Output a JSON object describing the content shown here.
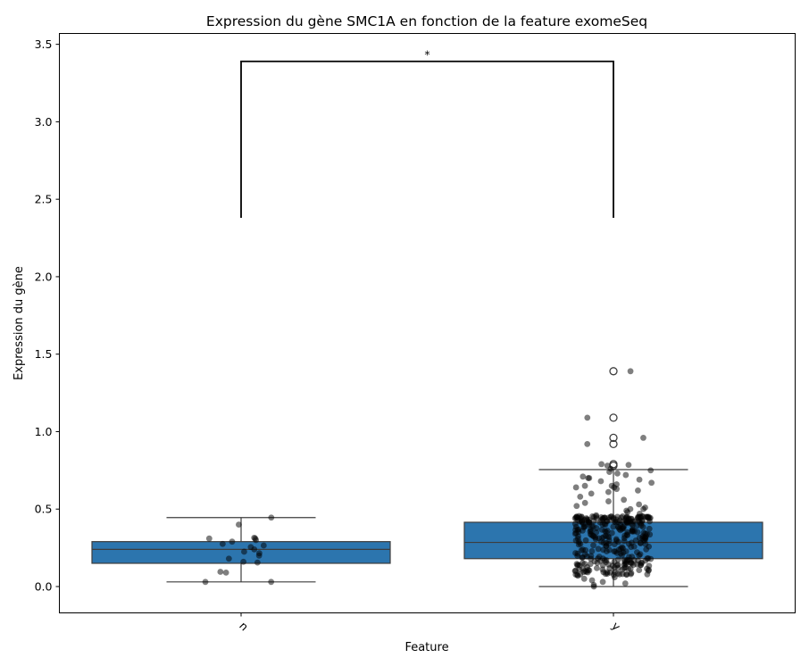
{
  "chart_data": {
    "type": "box",
    "title": "Expression du gène SMC1A en fonction de la feature exomeSeq",
    "xlabel": "Feature",
    "ylabel": "Expression du gène",
    "categories": [
      "n",
      "y"
    ],
    "ylim": [
      -0.17,
      3.57
    ],
    "yticks": [
      0.0,
      0.5,
      1.0,
      1.5,
      2.0,
      2.5,
      3.0,
      3.5
    ],
    "ytick_labels": [
      "0.0",
      "0.5",
      "1.0",
      "1.5",
      "2.0",
      "2.5",
      "3.0",
      "3.5"
    ],
    "grid": false,
    "box_color": "#2c75ae",
    "point_color": "#000000",
    "boxes": [
      {
        "category": "n",
        "whisker_low": 0.03,
        "q1": 0.15,
        "median": 0.24,
        "q3": 0.29,
        "whisker_high": 0.445,
        "outliers": []
      },
      {
        "category": "y",
        "whisker_low": 0.0,
        "q1": 0.18,
        "median": 0.285,
        "q3": 0.415,
        "whisker_high": 0.755,
        "outliers": [
          0.78,
          0.79,
          0.92,
          0.96,
          1.09,
          1.39
        ]
      }
    ],
    "points": {
      "n": [
        0.03,
        0.03,
        0.09,
        0.095,
        0.155,
        0.16,
        0.18,
        0.2,
        0.215,
        0.225,
        0.24,
        0.255,
        0.265,
        0.275,
        0.29,
        0.3,
        0.31,
        0.31,
        0.315,
        0.4,
        0.445
      ],
      "y_extra": [
        1.39,
        1.09,
        0.96,
        0.92,
        0.79,
        0.785,
        0.78,
        0.76,
        0.75,
        0.74,
        0.73,
        0.72,
        0.71,
        0.7,
        0.7,
        0.69,
        0.68,
        0.67,
        0.66,
        0.65,
        0.65,
        0.64,
        0.64,
        0.63,
        0.62,
        0.61,
        0.6,
        0.58,
        0.56,
        0.55,
        0.54,
        0.53,
        0.52,
        0.51,
        0.5,
        0.5,
        0.49,
        0.48,
        0.47,
        0.46,
        0.45,
        0.45,
        0.44,
        0.43,
        0.42,
        0.42,
        0.06,
        0.05,
        0.04,
        0.03,
        0.02,
        0.01,
        0.0
      ]
    },
    "significance": {
      "label": "*",
      "from": "n",
      "to": "y",
      "y_low": 2.38,
      "y_high": 3.39
    }
  }
}
